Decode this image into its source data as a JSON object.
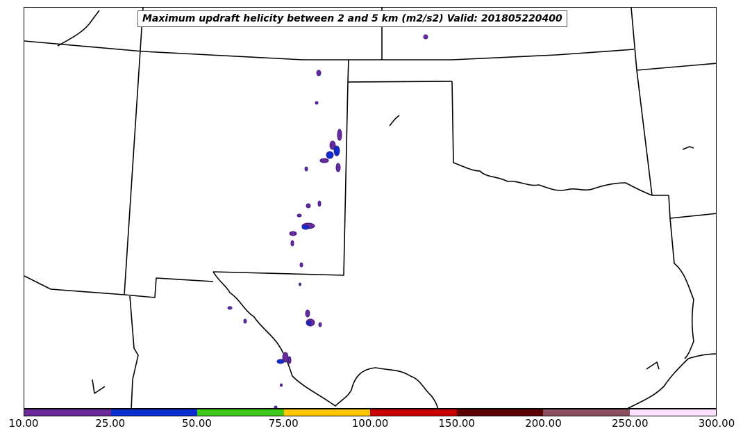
{
  "map": {
    "title": "Maximum updraft helicity between 2 and 5 km (m2/s2) Valid: 201805220400"
  },
  "colorbar": {
    "ticks": [
      "10.00",
      "25.00",
      "50.00",
      "75.00",
      "100.00",
      "150.00",
      "200.00",
      "250.00",
      "300.00"
    ],
    "colors": [
      "#6a2a9a",
      "#0a2ed0",
      "#3ec81a",
      "#ffc800",
      "#c80000",
      "#5a0000",
      "#8a5060",
      "#ffe0ff"
    ]
  }
}
